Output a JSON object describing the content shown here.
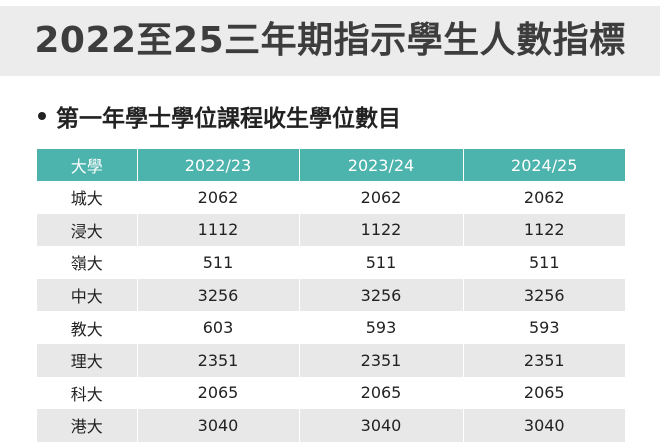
{
  "title": "2022至25三年期指示學生人數指標",
  "subtitle": "第一年學士學位課程收生學位數目",
  "table": {
    "headers": [
      "大學",
      "2022/23",
      "2023/24",
      "2024/25"
    ],
    "rows": [
      [
        "城大",
        "2062",
        "2062",
        "2062"
      ],
      [
        "浸大",
        "1112",
        "1122",
        "1122"
      ],
      [
        "嶺大",
        "511",
        "511",
        "511"
      ],
      [
        "中大",
        "3256",
        "3256",
        "3256"
      ],
      [
        "教大",
        "603",
        "593",
        "593"
      ],
      [
        "理大",
        "2351",
        "2351",
        "2351"
      ],
      [
        "科大",
        "2065",
        "2065",
        "2065"
      ],
      [
        "港大",
        "3040",
        "3040",
        "3040"
      ]
    ]
  },
  "colors": {
    "header_bg": "#4db3ad",
    "stripe_bg": "#e8e8e8",
    "title_bar_bg": "#ececec"
  }
}
